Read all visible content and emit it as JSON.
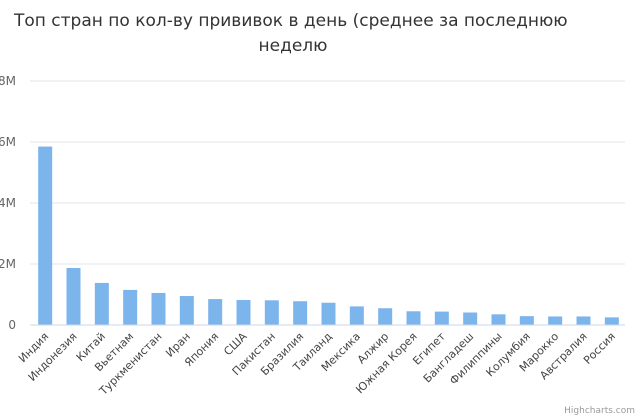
{
  "chart_data": {
    "type": "bar",
    "title_lines": [
      "Топ стран по кол-ву прививок в день (среднее за последнюю",
      "неделю"
    ],
    "categories": [
      "Индия",
      "Индонезия",
      "Китай",
      "Вьетнам",
      "Туркменистан",
      "Иран",
      "Япония",
      "США",
      "Пакистан",
      "Бразилия",
      "Таиланд",
      "Мексика",
      "Алжир",
      "Южная Корея",
      "Египет",
      "Бангладеш",
      "Филиппины",
      "Колумбия",
      "Марокко",
      "Австралия",
      "Россия"
    ],
    "values": [
      5850000,
      1870000,
      1380000,
      1150000,
      1050000,
      950000,
      850000,
      820000,
      810000,
      780000,
      730000,
      610000,
      550000,
      450000,
      440000,
      410000,
      350000,
      290000,
      280000,
      280000,
      250000
    ],
    "ylim": [
      0,
      8000000
    ],
    "yticks": [
      0,
      2000000,
      4000000,
      6000000,
      8000000
    ],
    "ytick_labels": [
      "0",
      "2M",
      "4M",
      "6M",
      "8M"
    ],
    "grid": true,
    "bar_color": "#7cb5ec",
    "credit": "Highcharts.com"
  }
}
